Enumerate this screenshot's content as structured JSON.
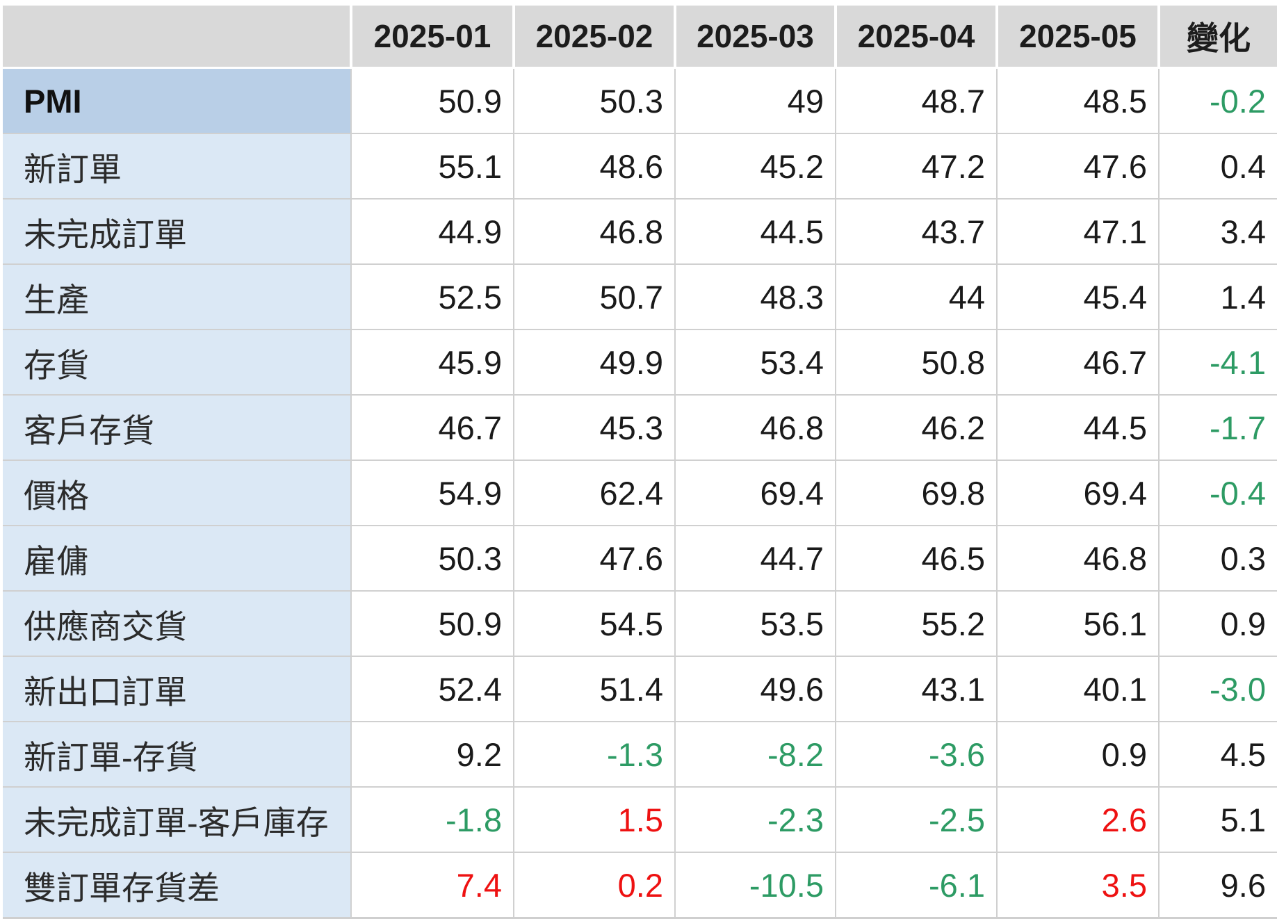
{
  "table": {
    "corner_label": "",
    "columns": [
      "2025-01",
      "2025-02",
      "2025-03",
      "2025-04",
      "2025-05",
      "變化"
    ],
    "rows": [
      {
        "label": "PMI",
        "highlight": true,
        "values": [
          "50.9",
          "50.3",
          "49",
          "48.7",
          "48.5",
          "-0.2"
        ],
        "colors": [
          "k",
          "k",
          "k",
          "k",
          "k",
          "g"
        ]
      },
      {
        "label": "新訂單",
        "highlight": false,
        "values": [
          "55.1",
          "48.6",
          "45.2",
          "47.2",
          "47.6",
          "0.4"
        ],
        "colors": [
          "k",
          "k",
          "k",
          "k",
          "k",
          "k"
        ]
      },
      {
        "label": "未完成訂單",
        "highlight": false,
        "values": [
          "44.9",
          "46.8",
          "44.5",
          "43.7",
          "47.1",
          "3.4"
        ],
        "colors": [
          "k",
          "k",
          "k",
          "k",
          "k",
          "k"
        ]
      },
      {
        "label": "生產",
        "highlight": false,
        "values": [
          "52.5",
          "50.7",
          "48.3",
          "44",
          "45.4",
          "1.4"
        ],
        "colors": [
          "k",
          "k",
          "k",
          "k",
          "k",
          "k"
        ]
      },
      {
        "label": "存貨",
        "highlight": false,
        "values": [
          "45.9",
          "49.9",
          "53.4",
          "50.8",
          "46.7",
          "-4.1"
        ],
        "colors": [
          "k",
          "k",
          "k",
          "k",
          "k",
          "g"
        ]
      },
      {
        "label": "客戶存貨",
        "highlight": false,
        "values": [
          "46.7",
          "45.3",
          "46.8",
          "46.2",
          "44.5",
          "-1.7"
        ],
        "colors": [
          "k",
          "k",
          "k",
          "k",
          "k",
          "g"
        ]
      },
      {
        "label": "價格",
        "highlight": false,
        "values": [
          "54.9",
          "62.4",
          "69.4",
          "69.8",
          "69.4",
          "-0.4"
        ],
        "colors": [
          "k",
          "k",
          "k",
          "k",
          "k",
          "g"
        ]
      },
      {
        "label": "雇傭",
        "highlight": false,
        "values": [
          "50.3",
          "47.6",
          "44.7",
          "46.5",
          "46.8",
          "0.3"
        ],
        "colors": [
          "k",
          "k",
          "k",
          "k",
          "k",
          "k"
        ]
      },
      {
        "label": "供應商交貨",
        "highlight": false,
        "values": [
          "50.9",
          "54.5",
          "53.5",
          "55.2",
          "56.1",
          "0.9"
        ],
        "colors": [
          "k",
          "k",
          "k",
          "k",
          "k",
          "k"
        ]
      },
      {
        "label": "新出口訂單",
        "highlight": false,
        "values": [
          "52.4",
          "51.4",
          "49.6",
          "43.1",
          "40.1",
          "-3.0"
        ],
        "colors": [
          "k",
          "k",
          "k",
          "k",
          "k",
          "g"
        ]
      },
      {
        "label": "新訂單-存貨",
        "highlight": false,
        "values": [
          "9.2",
          "-1.3",
          "-8.2",
          "-3.6",
          "0.9",
          "4.5"
        ],
        "colors": [
          "k",
          "g",
          "g",
          "g",
          "k",
          "k"
        ]
      },
      {
        "label": "未完成訂單-客戶庫存",
        "highlight": false,
        "values": [
          "-1.8",
          "1.5",
          "-2.3",
          "-2.5",
          "2.6",
          "5.1"
        ],
        "colors": [
          "g",
          "r",
          "g",
          "g",
          "r",
          "k"
        ]
      },
      {
        "label": "雙訂單存貨差",
        "highlight": false,
        "values": [
          "7.4",
          "0.2",
          "-10.5",
          "-6.1",
          "3.5",
          "9.6"
        ],
        "colors": [
          "r",
          "r",
          "g",
          "g",
          "r",
          "k"
        ]
      }
    ]
  },
  "colors": {
    "header_bg": "#d9d9d9",
    "label_bg": "#dbe8f5",
    "label_bg_highlight": "#b9cfe7",
    "grid": "#d0d0d0",
    "text_black": "#1a1a1a",
    "text_green": "#2d9b64",
    "text_red": "#ee1111"
  }
}
